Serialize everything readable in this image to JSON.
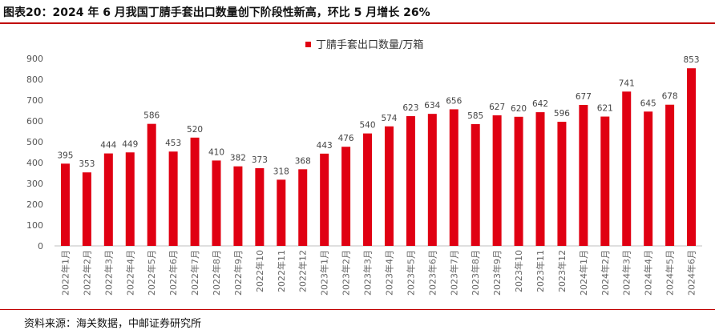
{
  "title": "图表20：2024 年 6 月我国丁腈手套出口数量创下阶段性新高，环比 5 月增长 26%",
  "source": "资料来源：海关数据，中邮证券研究所",
  "accent_color": "#e00012",
  "border_color": "#c00000",
  "chart_data": {
    "type": "bar",
    "categories": [
      "2022年1月",
      "2022年2月",
      "2022年3月",
      "2022年4月",
      "2022年5月",
      "2022年6月",
      "2022年7月",
      "2022年8月",
      "2022年9月",
      "2022年10",
      "2022年11",
      "2022年12",
      "2023年1月",
      "2023年2月",
      "2023年3月",
      "2023年4月",
      "2023年5月",
      "2023年6月",
      "2023年7月",
      "2023年8月",
      "2023年9月",
      "2023年10",
      "2023年11",
      "2023年12",
      "2024年1月",
      "2024年2月",
      "2024年3月",
      "2024年4月",
      "2024年5月",
      "2024年6月"
    ],
    "series": [
      {
        "name": "丁腈手套出口数量/万箱",
        "color": "#e00012",
        "values": [
          395,
          353,
          444,
          449,
          586,
          453,
          520,
          410,
          382,
          373,
          318,
          368,
          443,
          476,
          540,
          574,
          623,
          634,
          656,
          585,
          627,
          620,
          642,
          596,
          677,
          621,
          741,
          645,
          678,
          853
        ]
      }
    ],
    "yticks": [
      "0",
      "100",
      "200",
      "300",
      "400",
      "500",
      "600",
      "700",
      "800",
      "900"
    ],
    "ylim": [
      0,
      900
    ],
    "grid": false,
    "legend_position": "top-center"
  }
}
